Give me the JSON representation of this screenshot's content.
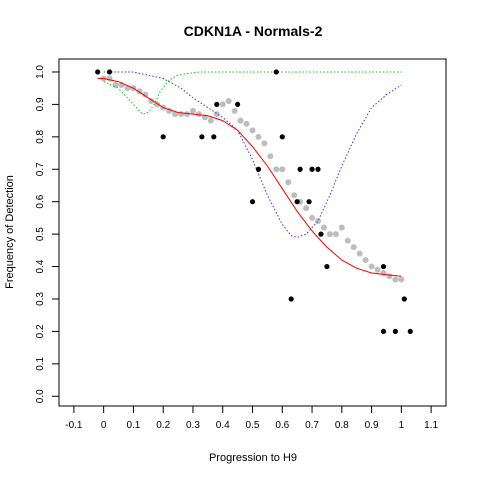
{
  "chart_data": {
    "type": "scatter",
    "title": "CDKN1A - Normals-2",
    "xlabel": "Progression to H9",
    "ylabel": "Frequency of Detection",
    "xlim": [
      -0.15,
      1.15
    ],
    "ylim": [
      -0.03,
      1.04
    ],
    "x_ticks": [
      -0.1,
      0,
      0.1,
      0.2,
      0.3,
      0.4,
      0.5,
      0.6,
      0.7,
      0.8,
      0.9,
      1.0,
      1.1
    ],
    "y_ticks": [
      0.0,
      0.1,
      0.2,
      0.3,
      0.4,
      0.5,
      0.6,
      0.7,
      0.8,
      0.9,
      1.0
    ],
    "grid": false,
    "legend": "none",
    "colors": {
      "observed": "#000000",
      "smoothed": "#bdbdbd",
      "fit": "#ff0000",
      "green_curve": "#00cc00",
      "blue_curve": "#3333ff"
    },
    "series": [
      {
        "kind": "points",
        "color": "#000000",
        "x": [
          -0.02,
          0.02,
          0.2,
          0.33,
          0.37,
          0.38,
          0.45,
          0.5,
          0.52,
          0.58,
          0.6,
          0.63,
          0.65,
          0.66,
          0.69,
          0.7,
          0.72,
          0.73,
          0.75,
          0.94,
          0.94,
          0.98,
          1.01,
          1.03
        ],
        "y": [
          1.0,
          1.0,
          0.8,
          0.8,
          0.8,
          0.9,
          0.9,
          0.6,
          0.7,
          1.0,
          0.8,
          0.3,
          0.6,
          0.7,
          0.6,
          0.7,
          0.7,
          0.5,
          0.4,
          0.4,
          0.2,
          0.2,
          0.3,
          0.2
        ]
      },
      {
        "kind": "smoothed",
        "color": "#bdbdbd",
        "x": [
          0.0,
          0.02,
          0.04,
          0.06,
          0.08,
          0.1,
          0.12,
          0.14,
          0.16,
          0.18,
          0.2,
          0.22,
          0.24,
          0.26,
          0.28,
          0.3,
          0.32,
          0.34,
          0.36,
          0.38,
          0.4,
          0.42,
          0.44,
          0.46,
          0.48,
          0.5,
          0.52,
          0.54,
          0.56,
          0.58,
          0.6,
          0.62,
          0.64,
          0.66,
          0.68,
          0.7,
          0.72,
          0.74,
          0.76,
          0.78,
          0.8,
          0.82,
          0.84,
          0.86,
          0.88,
          0.9,
          0.92,
          0.94,
          0.96,
          0.98,
          1.0
        ],
        "y": [
          0.98,
          0.98,
          0.96,
          0.96,
          0.95,
          0.95,
          0.94,
          0.93,
          0.91,
          0.9,
          0.89,
          0.88,
          0.87,
          0.87,
          0.87,
          0.88,
          0.87,
          0.86,
          0.85,
          0.87,
          0.9,
          0.91,
          0.88,
          0.85,
          0.84,
          0.82,
          0.8,
          0.78,
          0.74,
          0.7,
          0.7,
          0.66,
          0.62,
          0.6,
          0.58,
          0.55,
          0.54,
          0.52,
          0.5,
          0.5,
          0.52,
          0.48,
          0.46,
          0.44,
          0.42,
          0.4,
          0.39,
          0.38,
          0.37,
          0.36,
          0.36
        ]
      },
      {
        "kind": "fit",
        "color": "#ff0000",
        "x": [
          -0.02,
          0.0,
          0.05,
          0.1,
          0.15,
          0.2,
          0.25,
          0.3,
          0.35,
          0.4,
          0.45,
          0.5,
          0.55,
          0.6,
          0.65,
          0.7,
          0.75,
          0.8,
          0.85,
          0.9,
          0.95,
          1.0
        ],
        "y": [
          0.98,
          0.98,
          0.97,
          0.95,
          0.92,
          0.89,
          0.875,
          0.87,
          0.865,
          0.85,
          0.82,
          0.77,
          0.71,
          0.64,
          0.57,
          0.51,
          0.46,
          0.42,
          0.395,
          0.38,
          0.375,
          0.37
        ]
      },
      {
        "kind": "green",
        "color": "#00cc00",
        "x": [
          0.0,
          0.05,
          0.1,
          0.13,
          0.15,
          0.17,
          0.19,
          0.22,
          0.25,
          0.28,
          0.32,
          0.4,
          0.6,
          0.8,
          1.0
        ],
        "y": [
          0.97,
          0.95,
          0.9,
          0.87,
          0.875,
          0.9,
          0.94,
          0.975,
          0.99,
          0.995,
          1.0,
          1.0,
          1.0,
          1.0,
          1.0
        ]
      },
      {
        "kind": "blue",
        "color": "#3333ff",
        "x": [
          0.0,
          0.1,
          0.2,
          0.26,
          0.3,
          0.35,
          0.4,
          0.45,
          0.5,
          0.55,
          0.6,
          0.63,
          0.65,
          0.68,
          0.72,
          0.76,
          0.8,
          0.85,
          0.9,
          0.95,
          1.0
        ],
        "y": [
          1.0,
          1.0,
          0.98,
          0.95,
          0.92,
          0.89,
          0.86,
          0.82,
          0.73,
          0.62,
          0.53,
          0.495,
          0.49,
          0.5,
          0.54,
          0.62,
          0.71,
          0.81,
          0.89,
          0.93,
          0.96
        ]
      }
    ]
  }
}
